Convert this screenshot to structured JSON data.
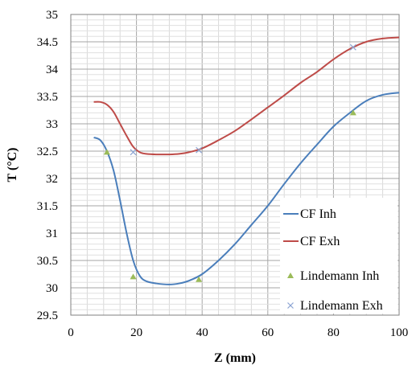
{
  "chart_data": {
    "type": "line",
    "xlabel": "Z (mm)",
    "ylabel": "T (°C)",
    "xlim": [
      0,
      100
    ],
    "ylim": [
      29.5,
      35
    ],
    "x_ticks": [
      "0",
      "20",
      "40",
      "60",
      "80",
      "100"
    ],
    "y_ticks": [
      "29.5",
      "30",
      "30.5",
      "31",
      "31.5",
      "32",
      "32.5",
      "33",
      "33.5",
      "34",
      "34.5",
      "35"
    ],
    "grid": true,
    "legend_position": "lower-right",
    "series": [
      {
        "name": "CF Inh",
        "style": "line",
        "color": "#4a7ebb",
        "x": [
          7,
          9,
          11,
          13,
          15,
          17,
          19,
          21,
          23,
          26,
          30,
          33,
          36,
          40,
          45,
          50,
          55,
          60,
          65,
          70,
          75,
          80,
          85,
          90,
          95,
          100
        ],
        "y": [
          32.75,
          32.7,
          32.5,
          32.15,
          31.6,
          31.0,
          30.5,
          30.22,
          30.12,
          30.08,
          30.06,
          30.08,
          30.13,
          30.25,
          30.5,
          30.8,
          31.15,
          31.5,
          31.9,
          32.28,
          32.62,
          32.95,
          33.2,
          33.42,
          33.53,
          33.57
        ]
      },
      {
        "name": "CF Exh",
        "style": "line",
        "color": "#be4b48",
        "x": [
          7,
          9,
          11,
          13,
          15,
          17,
          19,
          21,
          23,
          26,
          30,
          33,
          36,
          40,
          45,
          50,
          55,
          60,
          65,
          70,
          75,
          80,
          85,
          90,
          95,
          100
        ],
        "y": [
          33.4,
          33.4,
          33.35,
          33.22,
          33.0,
          32.78,
          32.58,
          32.48,
          32.45,
          32.44,
          32.44,
          32.45,
          32.48,
          32.55,
          32.7,
          32.87,
          33.08,
          33.3,
          33.52,
          33.75,
          33.95,
          34.18,
          34.37,
          34.5,
          34.56,
          34.58
        ]
      },
      {
        "name": "Lindemann Inh",
        "style": "triangle",
        "color": "#9bbb59",
        "x": [
          11,
          19,
          39,
          86
        ],
        "y": [
          32.48,
          30.2,
          30.15,
          33.2
        ]
      },
      {
        "name": "Lindemann Exh",
        "style": "cross",
        "color": "#8ba3d2",
        "x": [
          19,
          39,
          86
        ],
        "y": [
          32.48,
          32.52,
          34.4
        ]
      }
    ]
  }
}
